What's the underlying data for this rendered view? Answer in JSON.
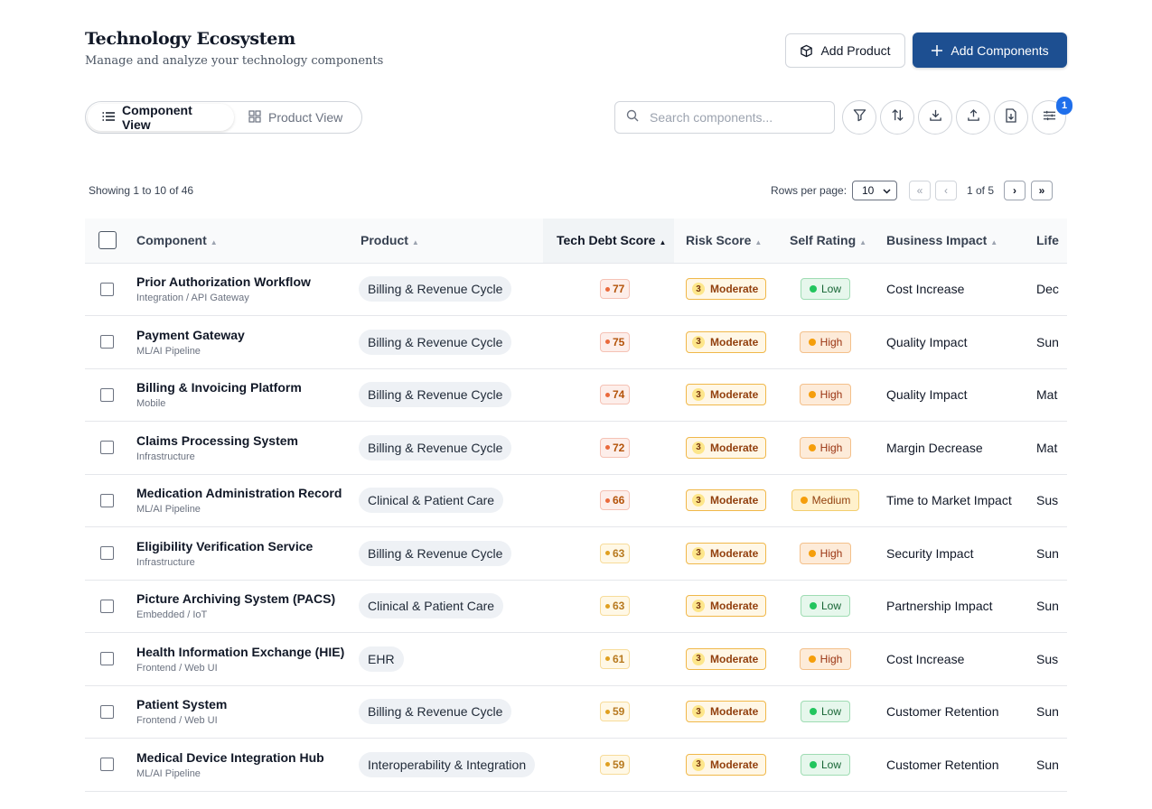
{
  "header": {
    "title": "Technology Ecosystem",
    "subtitle": "Manage and analyze your technology components"
  },
  "actions": {
    "add_product_label": "Add Product",
    "add_components_label": "Add Components"
  },
  "views": {
    "component_view_label": "Component View",
    "product_view_label": "Product View",
    "active": "Component View"
  },
  "search": {
    "placeholder": "Search components..."
  },
  "toolbar": {
    "icons": [
      "filter-icon",
      "sort-icon",
      "download-icon",
      "upload-icon",
      "export-file-icon",
      "settings-sliders-icon"
    ],
    "settings_badge": "1"
  },
  "pagination": {
    "showing_text": "Showing 1 to 10 of 46",
    "rows_per_page_label": "Rows per page:",
    "rows_per_page_value": "10",
    "page_info": "1 of 5",
    "first": "«",
    "prev": "‹",
    "next": "›",
    "last": "»"
  },
  "table": {
    "columns": [
      "Component",
      "Product",
      "Tech Debt Score",
      "Risk Score",
      "Self Rating",
      "Business Impact",
      "Life"
    ],
    "sorted_column": "Tech Debt Score",
    "rows": [
      {
        "name": "Prior Authorization Workflow",
        "type": "Integration / API Gateway",
        "product": "Billing & Revenue Cycle",
        "debt": "77",
        "risk_num": "3",
        "risk": "Moderate",
        "rating": "Low",
        "impact": "Cost Increase",
        "life": "Dec"
      },
      {
        "name": "Payment Gateway",
        "type": "ML/AI Pipeline",
        "product": "Billing & Revenue Cycle",
        "debt": "75",
        "risk_num": "3",
        "risk": "Moderate",
        "rating": "High",
        "impact": "Quality Impact",
        "life": "Sun"
      },
      {
        "name": "Billing & Invoicing Platform",
        "type": "Mobile",
        "product": "Billing & Revenue Cycle",
        "debt": "74",
        "risk_num": "3",
        "risk": "Moderate",
        "rating": "High",
        "impact": "Quality Impact",
        "life": "Mat"
      },
      {
        "name": "Claims Processing System",
        "type": "Infrastructure",
        "product": "Billing & Revenue Cycle",
        "debt": "72",
        "risk_num": "3",
        "risk": "Moderate",
        "rating": "High",
        "impact": "Margin Decrease",
        "life": "Mat"
      },
      {
        "name": "Medication Administration Record",
        "type": "ML/AI Pipeline",
        "product": "Clinical & Patient Care",
        "debt": "66",
        "risk_num": "3",
        "risk": "Moderate",
        "rating": "Medium",
        "impact": "Time to Market Impact",
        "life": "Sus"
      },
      {
        "name": "Eligibility Verification Service",
        "type": "Infrastructure",
        "product": "Billing & Revenue Cycle",
        "debt": "63",
        "risk_num": "3",
        "risk": "Moderate",
        "rating": "High",
        "impact": "Security Impact",
        "life": "Sun"
      },
      {
        "name": "Picture Archiving System (PACS)",
        "type": "Embedded / IoT",
        "product": "Clinical & Patient Care",
        "debt": "63",
        "risk_num": "3",
        "risk": "Moderate",
        "rating": "Low",
        "impact": "Partnership Impact",
        "life": "Sun"
      },
      {
        "name": "Health Information Exchange (HIE)",
        "type": "Frontend / Web UI",
        "product": "EHR",
        "debt": "61",
        "risk_num": "3",
        "risk": "Moderate",
        "rating": "High",
        "impact": "Cost Increase",
        "life": "Sus"
      },
      {
        "name": "Patient System",
        "type": "Frontend / Web UI",
        "product": "Billing & Revenue Cycle",
        "debt": "59",
        "risk_num": "3",
        "risk": "Moderate",
        "rating": "Low",
        "impact": "Customer Retention",
        "life": "Sun"
      },
      {
        "name": "Medical Device Integration Hub",
        "type": "ML/AI Pipeline",
        "product": "Interoperability & Integration",
        "debt": "59",
        "risk_num": "3",
        "risk": "Moderate",
        "rating": "Low",
        "impact": "Customer Retention",
        "life": "Sun"
      }
    ]
  },
  "colors": {
    "primary": "#1d4f91",
    "debt_high_bg": "#fdecea",
    "debt_high_fg": "#b45309",
    "debt_mid_bg": "#fff7e0",
    "rating_low": "#16a34a",
    "rating_high": "#f59e0b",
    "risk_border": "#f0b84a"
  }
}
